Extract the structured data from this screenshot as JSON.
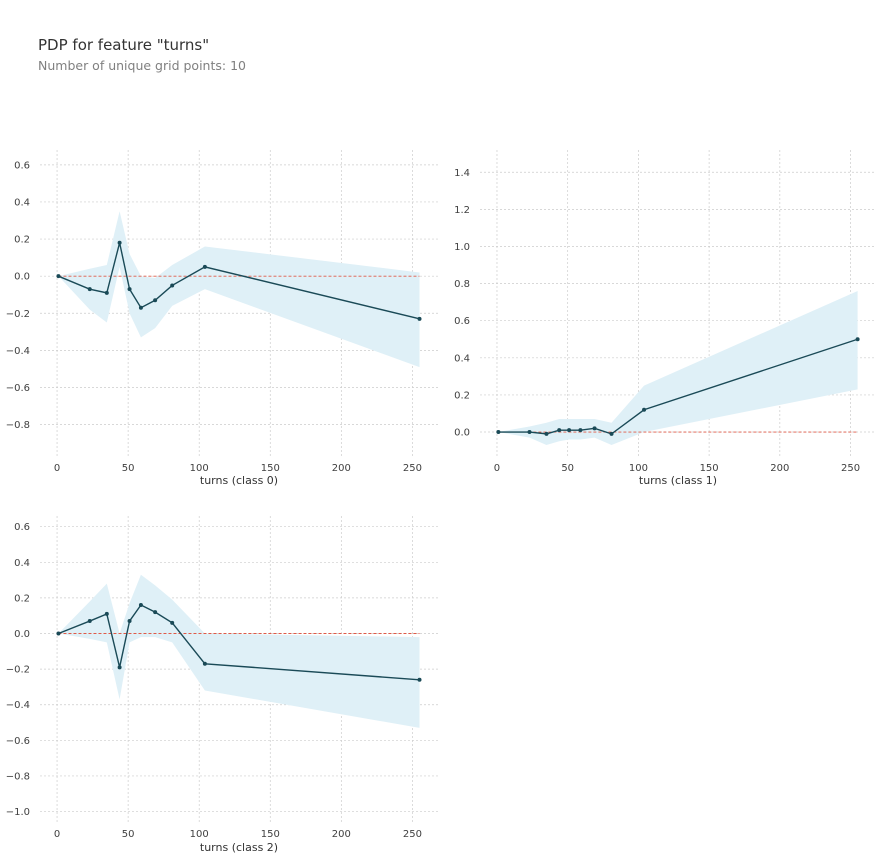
{
  "title": "PDP for feature \"turns\"",
  "subtitle": "Number of unique grid points: 10",
  "colors": {
    "line": "#1a4a57",
    "band": "#dff0f7",
    "baseline": "#e05a47",
    "grid": "#cccccc"
  },
  "chart_data": [
    {
      "type": "line",
      "xlabel": "turns (class 0)",
      "x": [
        1,
        23,
        35,
        44,
        51,
        59,
        69,
        81,
        104,
        255
      ],
      "series": [
        {
          "values": [
            0.0,
            -0.07,
            -0.09,
            0.18,
            -0.07,
            -0.17,
            -0.13,
            -0.05,
            0.05,
            -0.23
          ]
        }
      ],
      "band_upper": [
        0.0,
        0.04,
        0.06,
        0.35,
        0.12,
        0.0,
        -0.01,
        0.06,
        0.16,
        0.02
      ],
      "band_lower": [
        0.0,
        -0.18,
        -0.25,
        0.05,
        -0.2,
        -0.33,
        -0.28,
        -0.16,
        -0.07,
        -0.49
      ],
      "baseline": 0.0,
      "xticks": [
        0,
        50,
        100,
        150,
        200,
        250
      ],
      "yticks": [
        -0.8,
        -0.6,
        -0.4,
        -0.2,
        0.0,
        0.2,
        0.4,
        0.6
      ],
      "xticklabels": [
        "0",
        "50",
        "100",
        "150",
        "200",
        "250"
      ],
      "yticklabels": [
        "−0.8",
        "−0.6",
        "−0.4",
        "−0.2",
        "0.0",
        "0.2",
        "0.4",
        "0.6"
      ],
      "xlim": [
        -12,
        268
      ],
      "ylim": [
        -0.98,
        0.68
      ],
      "grid": true
    },
    {
      "type": "line",
      "xlabel": "turns (class 1)",
      "x": [
        1,
        23,
        35,
        44,
        51,
        59,
        69,
        81,
        104,
        255
      ],
      "series": [
        {
          "values": [
            0.0,
            0.0,
            -0.01,
            0.01,
            0.01,
            0.01,
            0.02,
            -0.01,
            0.12,
            0.5
          ]
        }
      ],
      "band_upper": [
        0.0,
        0.03,
        0.05,
        0.07,
        0.07,
        0.07,
        0.07,
        0.05,
        0.25,
        0.76
      ],
      "band_lower": [
        0.0,
        -0.03,
        -0.07,
        -0.05,
        -0.04,
        -0.04,
        -0.03,
        -0.07,
        0.0,
        0.23
      ],
      "baseline": 0.0,
      "xticks": [
        0,
        50,
        100,
        150,
        200,
        250
      ],
      "yticks": [
        0.0,
        0.2,
        0.4,
        0.6,
        0.8,
        1.0,
        1.2,
        1.4
      ],
      "xticklabels": [
        "0",
        "50",
        "100",
        "150",
        "200",
        "250"
      ],
      "yticklabels": [
        "0.0",
        "0.2",
        "0.4",
        "0.6",
        "0.8",
        "1.0",
        "1.2",
        "1.4"
      ],
      "xlim": [
        -12,
        268
      ],
      "ylim": [
        -0.14,
        1.52
      ],
      "grid": true
    },
    {
      "type": "line",
      "xlabel": "turns (class 2)",
      "x": [
        1,
        23,
        35,
        44,
        51,
        59,
        69,
        81,
        104,
        255
      ],
      "series": [
        {
          "values": [
            0.0,
            0.07,
            0.11,
            -0.19,
            0.07,
            0.16,
            0.12,
            0.06,
            -0.17,
            -0.26
          ]
        }
      ],
      "band_upper": [
        0.0,
        0.18,
        0.28,
        0.0,
        0.17,
        0.33,
        0.27,
        0.19,
        0.0,
        -0.02
      ],
      "band_lower": [
        0.0,
        -0.03,
        -0.05,
        -0.37,
        -0.05,
        -0.02,
        -0.02,
        -0.05,
        -0.32,
        -0.53
      ],
      "baseline": 0.0,
      "xticks": [
        0,
        50,
        100,
        150,
        200,
        250
      ],
      "yticks": [
        -1.0,
        -0.8,
        -0.6,
        -0.4,
        -0.2,
        0.0,
        0.2,
        0.4,
        0.6
      ],
      "xticklabels": [
        "0",
        "50",
        "100",
        "150",
        "200",
        "250"
      ],
      "yticklabels": [
        "−1.0",
        "−0.8",
        "−0.6",
        "−0.4",
        "−0.2",
        "0.0",
        "0.2",
        "0.4",
        "0.6"
      ],
      "xlim": [
        -12,
        268
      ],
      "ylim": [
        -1.07,
        0.66
      ],
      "grid": true
    }
  ]
}
